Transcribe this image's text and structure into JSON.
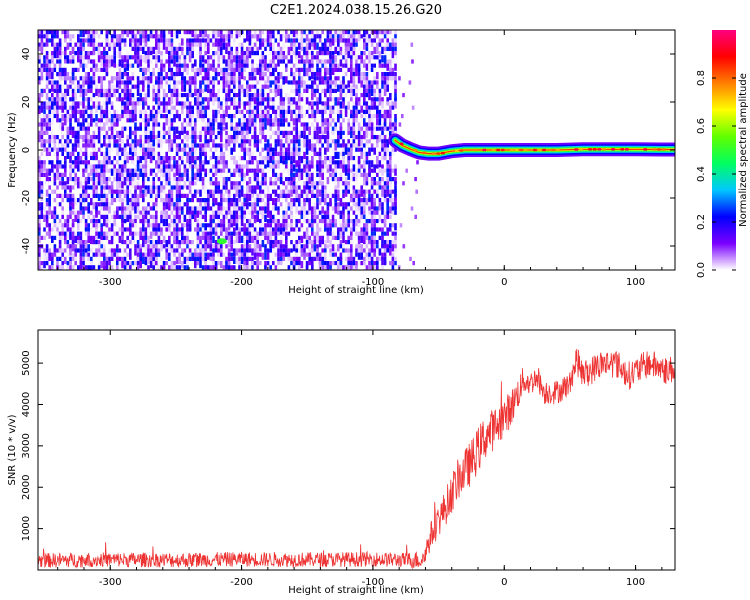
{
  "title": "C2E1.2024.038.15.26.G20",
  "chart_data": [
    {
      "type": "heatmap",
      "xlabel": "Height of straight line (km)",
      "ylabel": "Frequency (Hz)",
      "xlim": [
        -355,
        130
      ],
      "ylim": [
        -50,
        50
      ],
      "xticks": [
        -300,
        -200,
        -100,
        0,
        100
      ],
      "yticks": [
        -40,
        -20,
        0,
        20,
        40
      ],
      "noise_region": {
        "x_range": [
          -355,
          -83
        ],
        "freq_range": [
          -50,
          50
        ],
        "normalized_amplitude": [
          0.0,
          0.25
        ]
      },
      "weak_spot": {
        "x": -215,
        "y": -38,
        "normalized_amplitude": 0.5
      },
      "signal_track": {
        "x": [
          -83,
          -78,
          -72,
          -65,
          -58,
          -50,
          -40,
          -30,
          -20,
          -10,
          0,
          20,
          40,
          60,
          80,
          100,
          120,
          130
        ],
        "y": [
          4,
          2,
          0.5,
          -1,
          -1.5,
          -1.5,
          -0.5,
          0,
          0,
          0,
          0,
          0,
          0,
          0.3,
          0.3,
          0.3,
          0.2,
          0.2
        ],
        "normalized_amplitude_peak": 0.95
      },
      "grid": false,
      "colorbar": {
        "label": "Normalized spectral amplitude",
        "ticks": [
          "0.0",
          "0.2",
          "0.4",
          "0.6",
          "0.8"
        ],
        "range": [
          0,
          1
        ],
        "colormap": [
          "#ffffff",
          "#7a00ff",
          "#0000ff",
          "#00c8ff",
          "#00ff60",
          "#60ff00",
          "#ffff00",
          "#ff8000",
          "#ff0000",
          "#ff0080"
        ]
      }
    },
    {
      "type": "line",
      "xlabel": "Height of straight line (km)",
      "ylabel": "SNR (10 * v/v)",
      "xlim": [
        -355,
        130
      ],
      "ylim": [
        0,
        5800
      ],
      "xticks": [
        -300,
        -200,
        -100,
        0,
        100
      ],
      "yticks": [
        1000,
        2000,
        3000,
        4000,
        5000
      ],
      "grid": false,
      "color": "#ee3333",
      "series": [
        {
          "x": [
            -355,
            -300,
            -250,
            -200,
            -150,
            -100,
            -75,
            -62,
            -55,
            -45,
            -35,
            -25,
            -15,
            -5,
            5,
            15,
            20,
            25,
            30,
            40,
            50,
            55,
            60,
            70,
            75,
            85,
            95,
            110,
            125,
            130
          ],
          "y": [
            230,
            250,
            240,
            260,
            250,
            260,
            240,
            250,
            900,
            1500,
            2200,
            2600,
            3200,
            3500,
            3900,
            4600,
            4500,
            4700,
            4300,
            4300,
            4500,
            5100,
            4700,
            4900,
            5000,
            5000,
            4700,
            5000,
            4800,
            4900
          ],
          "noise_amplitude": [
            180,
            180,
            180,
            180,
            180,
            180,
            180,
            250,
            350,
            450,
            500,
            550,
            550,
            500,
            450,
            350,
            300,
            300,
            300,
            300,
            300,
            350,
            350,
            350,
            350,
            350,
            350,
            350,
            350,
            350
          ]
        }
      ]
    }
  ]
}
